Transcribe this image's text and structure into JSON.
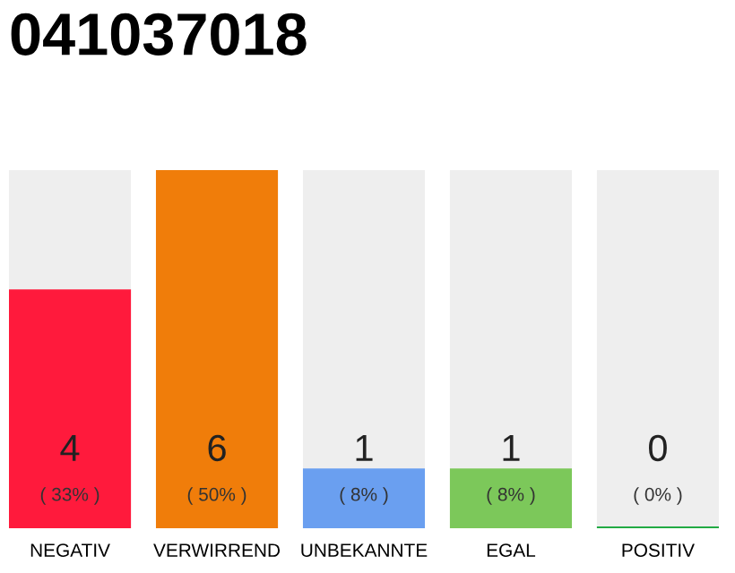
{
  "chart_data": {
    "type": "bar",
    "title": "041037018",
    "categories": [
      "NEGATIV",
      "VERWIRREND",
      "UNBEKANNTE",
      "EGAL",
      "POSITIV"
    ],
    "values": [
      4,
      6,
      1,
      1,
      0
    ],
    "colors": [
      "#ff1a3c",
      "#f07d0a",
      "#6a9ff0",
      "#7cc85a",
      "#22aa44"
    ],
    "value_labels": [
      "4\n( 33% )",
      "6\n( 50% )",
      "1\n( 8% )",
      "1\n( 8% )",
      "0\n( 0% )"
    ],
    "ylim": [
      0,
      6
    ],
    "tick_labels": "x",
    "grid": false,
    "legend": false
  }
}
